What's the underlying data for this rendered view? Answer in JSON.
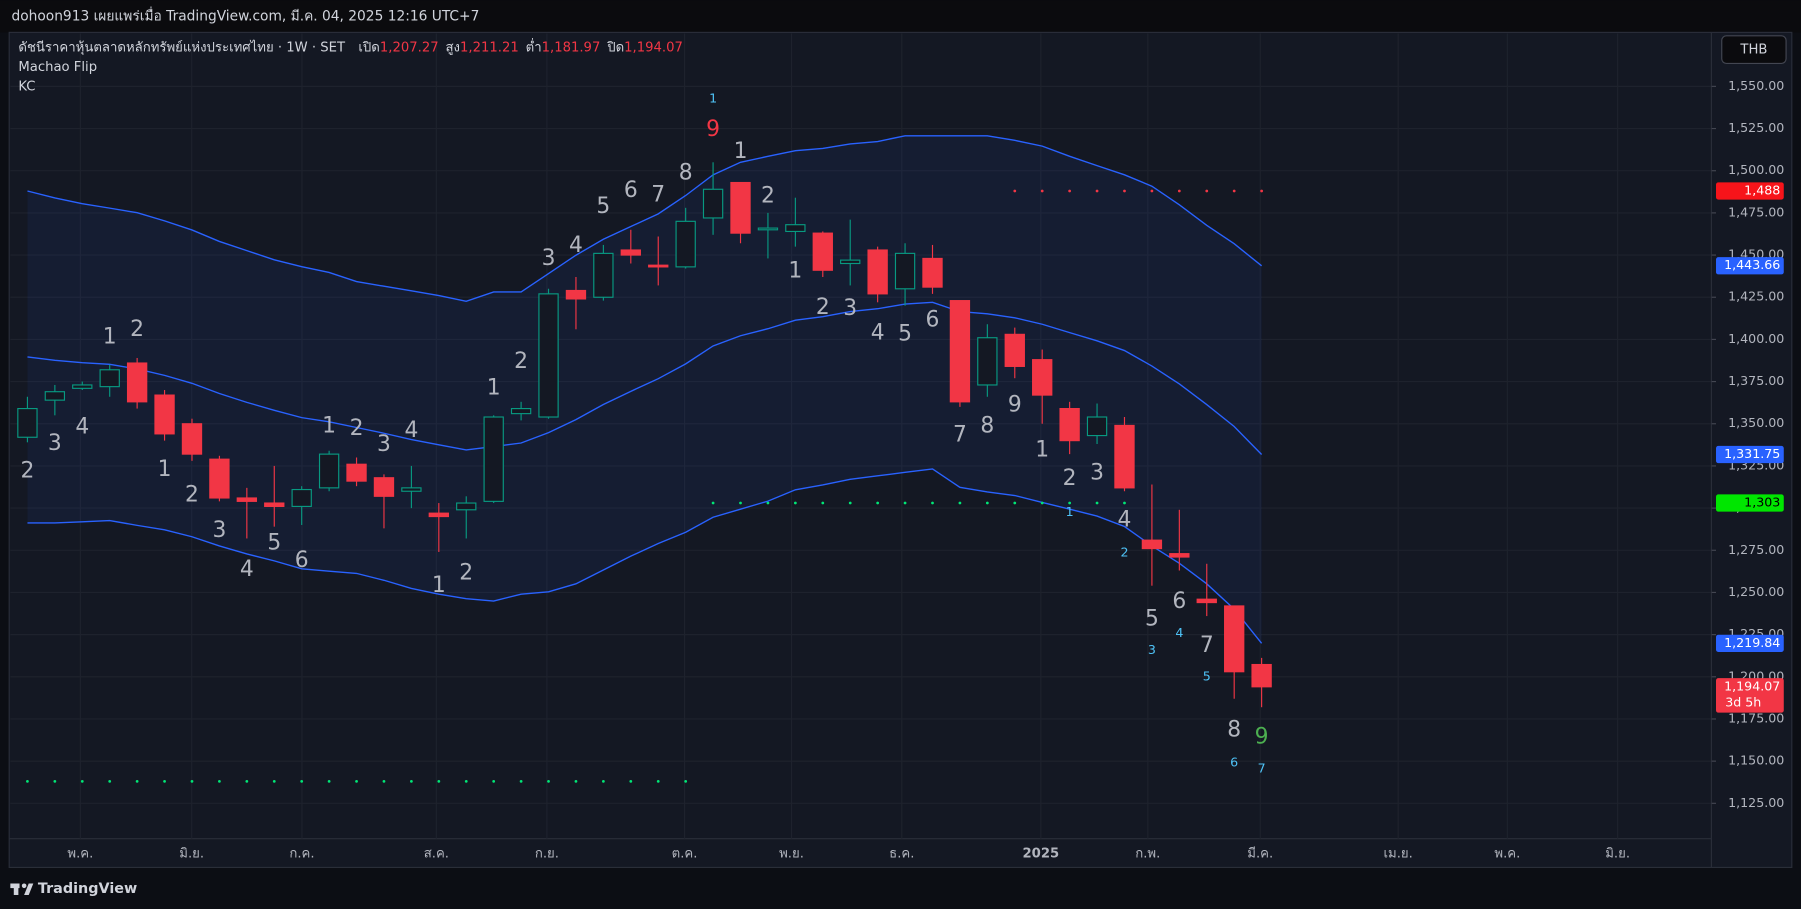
{
  "header": {
    "published": "dohoon913 เผยแพร่เมื่อ TradingView.com, มี.ค. 04, 2025 12:16 UTC+7",
    "symbol": "ดัชนีราคาหุ้นตลาดหลักทรัพย์แห่งประเทศไทย · 1W · SET",
    "ohlc": [
      {
        "label": "เปิด",
        "value": "1,207.27"
      },
      {
        "label": "สูง",
        "value": "1,211.21"
      },
      {
        "label": "ต่ำ",
        "value": "1,181.97"
      },
      {
        "label": "ปิด",
        "value": "1,194.07"
      }
    ],
    "indicators": [
      "Machao Flip",
      "KC"
    ],
    "currency": "THB"
  },
  "footer": {
    "brand": "TradingView"
  },
  "chart_data": {
    "type": "candlestick",
    "categories": [
      null,
      null,
      null,
      null,
      null,
      null,
      null,
      null,
      null,
      null,
      null,
      null,
      null,
      null,
      null,
      null,
      null,
      null,
      null,
      null,
      null,
      null,
      null,
      null,
      null,
      null,
      null,
      null,
      null,
      null,
      null,
      null,
      null,
      null,
      null,
      null,
      null,
      null,
      null,
      null,
      null,
      null,
      null,
      null,
      null,
      null
    ],
    "open": [
      1342,
      1364,
      1371,
      1372,
      1386,
      1367,
      1350,
      1329,
      1306,
      1303,
      1301,
      1312,
      1326,
      1318,
      1310,
      1297,
      1299,
      1304,
      1356,
      1354,
      1429,
      1425,
      1453,
      1444,
      1443,
      1472,
      1493,
      1465,
      1464,
      1463,
      1445,
      1453,
      1430,
      1448,
      1423,
      1373,
      1403,
      1388,
      1359,
      1343,
      1349,
      1281,
      1273,
      1246,
      1242,
      1207.27
    ],
    "high": [
      1366,
      1373,
      1375,
      1385,
      1389,
      1370,
      1353,
      1331,
      1312,
      1325,
      1313,
      1334,
      1330,
      1320,
      1325,
      1303,
      1307,
      1355,
      1363,
      1430,
      1437,
      1456,
      1465,
      1461,
      1478,
      1505,
      1493,
      1475,
      1484,
      1464,
      1471,
      1455,
      1457,
      1456,
      1423,
      1409,
      1407,
      1394,
      1363,
      1362,
      1354,
      1314,
      1299,
      1267,
      1242,
      1211.21
    ],
    "low": [
      1339,
      1355,
      1370,
      1366,
      1359,
      1340,
      1328,
      1304,
      1282,
      1289,
      1290,
      1310,
      1313,
      1288,
      1300,
      1274,
      1282,
      1303,
      1352,
      1353,
      1406,
      1423,
      1445,
      1432,
      1442,
      1462,
      1457,
      1448,
      1455,
      1437,
      1432,
      1422,
      1420,
      1427,
      1360,
      1366,
      1377,
      1350,
      1332,
      1338,
      1310,
      1254,
      1263,
      1236,
      1187,
      1181.97
    ],
    "close": [
      1359,
      1369,
      1373,
      1382,
      1363,
      1344,
      1332,
      1306,
      1304,
      1301,
      1311,
      1332,
      1316,
      1307,
      1312,
      1295,
      1303,
      1354,
      1359,
      1427,
      1424,
      1451,
      1450,
      1443,
      1470,
      1489,
      1463,
      1466,
      1468,
      1441,
      1447,
      1427,
      1451,
      1431,
      1363,
      1401,
      1384,
      1367,
      1340,
      1354,
      1312,
      1276,
      1271,
      1244,
      1203,
      1194.07
    ],
    "up_color": "#089981",
    "down_color": "#f23645",
    "kc_upper": [
      1488.0,
      1483.9,
      1480.5,
      1477.8,
      1475.1,
      1470.3,
      1464.9,
      1458.1,
      1452.6,
      1447.2,
      1443.1,
      1439.7,
      1434.3,
      1431.5,
      1428.8,
      1426.0,
      1422.6,
      1428.1,
      1428.1,
      1439.0,
      1449.9,
      1459.4,
      1466.9,
      1474.4,
      1485.3,
      1497.6,
      1505.0,
      1508.5,
      1511.9,
      1513.2,
      1515.9,
      1517.3,
      1520.7,
      1520.7,
      1520.7,
      1520.7,
      1518.0,
      1514.6,
      1508.5,
      1503.0,
      1497.6,
      1490.8,
      1479.8,
      1467.6,
      1456.7,
      1443.66
    ],
    "kc_middle": [
      1389.6,
      1387.6,
      1386.2,
      1385.2,
      1382.5,
      1378.7,
      1374.0,
      1367.9,
      1362.7,
      1358.0,
      1353.6,
      1351.2,
      1347.8,
      1344.4,
      1340.6,
      1337.5,
      1334.5,
      1336.5,
      1338.6,
      1344.7,
      1352.5,
      1361.4,
      1369.2,
      1376.7,
      1385.5,
      1396.1,
      1402.2,
      1406.3,
      1411.4,
      1413.5,
      1416.5,
      1418.2,
      1421.0,
      1422.0,
      1416.5,
      1415.2,
      1412.8,
      1409.0,
      1404.0,
      1399.2,
      1393.4,
      1384.2,
      1373.6,
      1361.4,
      1348.4,
      1331.75
    ],
    "kc_lower": [
      1291.2,
      1291.2,
      1291.9,
      1292.6,
      1289.8,
      1287.1,
      1283.0,
      1277.6,
      1272.8,
      1268.7,
      1264.0,
      1262.6,
      1261.3,
      1257.2,
      1252.4,
      1249.0,
      1246.3,
      1244.9,
      1249.0,
      1250.4,
      1255.1,
      1263.3,
      1271.5,
      1279.0,
      1285.7,
      1294.6,
      1299.4,
      1304.1,
      1310.9,
      1313.7,
      1317.1,
      1319.1,
      1321.2,
      1323.2,
      1312.3,
      1309.6,
      1307.5,
      1303.4,
      1299.4,
      1295.3,
      1289.1,
      1277.6,
      1267.3,
      1255.1,
      1240.1,
      1219.84
    ],
    "kc_color": "#2962ff",
    "levels": [
      {
        "value": 1488,
        "from": 36,
        "to": 45,
        "color": "#f23645"
      },
      {
        "value": 1303,
        "from": 25,
        "to": 40,
        "color": "#00e676"
      },
      {
        "value": 1138,
        "from": 0,
        "to": 24,
        "color": "#00e676"
      }
    ],
    "annotations": [
      {
        "text": "2",
        "x": 0,
        "y": 1321.8,
        "size": "big"
      },
      {
        "text": "3",
        "x": 1,
        "y": 1338,
        "size": "big"
      },
      {
        "text": "4",
        "x": 2,
        "y": 1347.7,
        "size": "big"
      },
      {
        "text": "1",
        "x": 3,
        "y": 1401,
        "size": "big"
      },
      {
        "text": "2",
        "x": 4,
        "y": 1405.6,
        "size": "big"
      },
      {
        "text": "1",
        "x": 5,
        "y": 1322.5,
        "size": "big"
      },
      {
        "text": "2",
        "x": 6,
        "y": 1307.5,
        "size": "big"
      },
      {
        "text": "3",
        "x": 7,
        "y": 1286.4,
        "size": "big"
      },
      {
        "text": "4",
        "x": 8,
        "y": 1263.3,
        "size": "big"
      },
      {
        "text": "5",
        "x": 9,
        "y": 1279,
        "size": "big"
      },
      {
        "text": "6",
        "x": 10,
        "y": 1268.7,
        "size": "big"
      },
      {
        "text": "1",
        "x": 11,
        "y": 1348.4,
        "size": "big"
      },
      {
        "text": "2",
        "x": 12,
        "y": 1347,
        "size": "big"
      },
      {
        "text": "3",
        "x": 13,
        "y": 1337.5,
        "size": "big"
      },
      {
        "text": "4",
        "x": 14,
        "y": 1345.7,
        "size": "big"
      },
      {
        "text": "1",
        "x": 15,
        "y": 1253.7,
        "size": "big"
      },
      {
        "text": "2",
        "x": 16,
        "y": 1261.2,
        "size": "big"
      },
      {
        "text": "1",
        "x": 17,
        "y": 1370.9,
        "size": "big"
      },
      {
        "text": "2",
        "x": 18,
        "y": 1386.5,
        "size": "big"
      },
      {
        "text": "3",
        "x": 19,
        "y": 1447.8,
        "size": "big"
      },
      {
        "text": "4",
        "x": 20,
        "y": 1455.3,
        "size": "big"
      },
      {
        "text": "5",
        "x": 21,
        "y": 1478.5,
        "size": "big"
      },
      {
        "text": "6",
        "x": 22,
        "y": 1488,
        "size": "big"
      },
      {
        "text": "7",
        "x": 23,
        "y": 1485.3,
        "size": "big"
      },
      {
        "text": "8",
        "x": 24,
        "y": 1498.2,
        "size": "big"
      },
      {
        "text": "9",
        "x": 25,
        "y": 1524.1,
        "size": "big",
        "color": "#f23645"
      },
      {
        "text": "1",
        "x": 25,
        "y": 1542.5,
        "size": "small"
      },
      {
        "text": "1",
        "x": 26,
        "y": 1511.2,
        "size": "big"
      },
      {
        "text": "2",
        "x": 27,
        "y": 1484.6,
        "size": "big"
      },
      {
        "text": "1",
        "x": 28,
        "y": 1440.3,
        "size": "big"
      },
      {
        "text": "2",
        "x": 29,
        "y": 1418.5,
        "size": "big"
      },
      {
        "text": "3",
        "x": 30,
        "y": 1417.9,
        "size": "big"
      },
      {
        "text": "4",
        "x": 31,
        "y": 1403.6,
        "size": "big"
      },
      {
        "text": "5",
        "x": 32,
        "y": 1402.9,
        "size": "big"
      },
      {
        "text": "6",
        "x": 33,
        "y": 1411.1,
        "size": "big"
      },
      {
        "text": "7",
        "x": 34,
        "y": 1343,
        "size": "big"
      },
      {
        "text": "8",
        "x": 35,
        "y": 1348.4,
        "size": "big"
      },
      {
        "text": "9",
        "x": 36,
        "y": 1360.7,
        "size": "big"
      },
      {
        "text": "1",
        "x": 37,
        "y": 1334.1,
        "size": "big"
      },
      {
        "text": "2",
        "x": 38,
        "y": 1317.1,
        "size": "big"
      },
      {
        "text": "1",
        "x": 38,
        "y": 1297.3,
        "size": "small"
      },
      {
        "text": "3",
        "x": 39,
        "y": 1320.5,
        "size": "big"
      },
      {
        "text": "4",
        "x": 40,
        "y": 1292.5,
        "size": "big"
      },
      {
        "text": "2",
        "x": 40,
        "y": 1273.5,
        "size": "small"
      },
      {
        "text": "5",
        "x": 41,
        "y": 1234,
        "size": "big"
      },
      {
        "text": "3",
        "x": 41,
        "y": 1215.6,
        "size": "small"
      },
      {
        "text": "6",
        "x": 42,
        "y": 1244.2,
        "size": "big"
      },
      {
        "text": "4",
        "x": 42,
        "y": 1225.8,
        "size": "small"
      },
      {
        "text": "7",
        "x": 43,
        "y": 1218.3,
        "size": "big"
      },
      {
        "text": "5",
        "x": 43,
        "y": 1199.9,
        "size": "small"
      },
      {
        "text": "8",
        "x": 44,
        "y": 1168.2,
        "size": "big"
      },
      {
        "text": "6",
        "x": 44,
        "y": 1148.8,
        "size": "small"
      },
      {
        "text": "9",
        "x": 45,
        "y": 1164,
        "size": "big",
        "color": "#4caf50"
      },
      {
        "text": "7",
        "x": 45,
        "y": 1145.4,
        "size": "small"
      }
    ],
    "price_labels": [
      {
        "value": 1488,
        "label": "1,488",
        "color": "#f7141a"
      },
      {
        "value": 1443.66,
        "label": "1,443.66",
        "color": "#2962ff"
      },
      {
        "value": 1331.75,
        "label": "1,331.75",
        "color": "#2962ff"
      },
      {
        "value": 1303,
        "label": "1,303",
        "color": "#00e600"
      },
      {
        "value": 1219.84,
        "label": "1,219.84",
        "color": "#2962ff"
      },
      {
        "value": 1194.07,
        "label": "1,194.07",
        "color": "#f23645",
        "sub": "3d 5h"
      }
    ],
    "xlim": [
      -1,
      61.4
    ],
    "ylim": [
      1087,
      1582
    ],
    "xticks": [
      {
        "value": 1.93,
        "label": "พ.ค."
      },
      {
        "value": 5.99,
        "label": "มิ.ย."
      },
      {
        "value": 10.01,
        "label": "ก.ค."
      },
      {
        "value": 14.91,
        "label": "ส.ค."
      },
      {
        "value": 18.94,
        "label": "ก.ย."
      },
      {
        "value": 23.96,
        "label": "ต.ค."
      },
      {
        "value": 27.86,
        "label": "พ.ย."
      },
      {
        "value": 31.88,
        "label": "ธ.ค."
      },
      {
        "value": 36.95,
        "label": "2025"
      },
      {
        "value": 40.85,
        "label": "ก.พ."
      },
      {
        "value": 44.95,
        "label": "มี.ค."
      },
      {
        "value": 49.98,
        "label": "เม.ย."
      },
      {
        "value": 53.96,
        "label": "พ.ค."
      },
      {
        "value": 57.98,
        "label": "มิ.ย."
      }
    ],
    "yticks": [
      {
        "value": 1125,
        "label": "1,125.00"
      },
      {
        "value": 1150,
        "label": "1,150.00"
      },
      {
        "value": 1175,
        "label": "1,175.00"
      },
      {
        "value": 1200,
        "label": "1,200.00"
      },
      {
        "value": 1225,
        "label": "1,225.00"
      },
      {
        "value": 1250,
        "label": "1,250.00"
      },
      {
        "value": 1275,
        "label": "1,275.00"
      },
      {
        "value": 1300,
        "label": "1,300.00"
      },
      {
        "value": 1325,
        "label": "1,325.00"
      },
      {
        "value": 1350,
        "label": "1,350.00"
      },
      {
        "value": 1375,
        "label": "1,375.00"
      },
      {
        "value": 1400,
        "label": "1,400.00"
      },
      {
        "value": 1425,
        "label": "1,425.00"
      },
      {
        "value": 1450,
        "label": "1,450.00"
      },
      {
        "value": 1475,
        "label": "1,475.00"
      },
      {
        "value": 1500,
        "label": "1,500.00"
      },
      {
        "value": 1525,
        "label": "1,525.00"
      },
      {
        "value": 1550,
        "label": "1,550.00"
      }
    ],
    "grid": true
  }
}
